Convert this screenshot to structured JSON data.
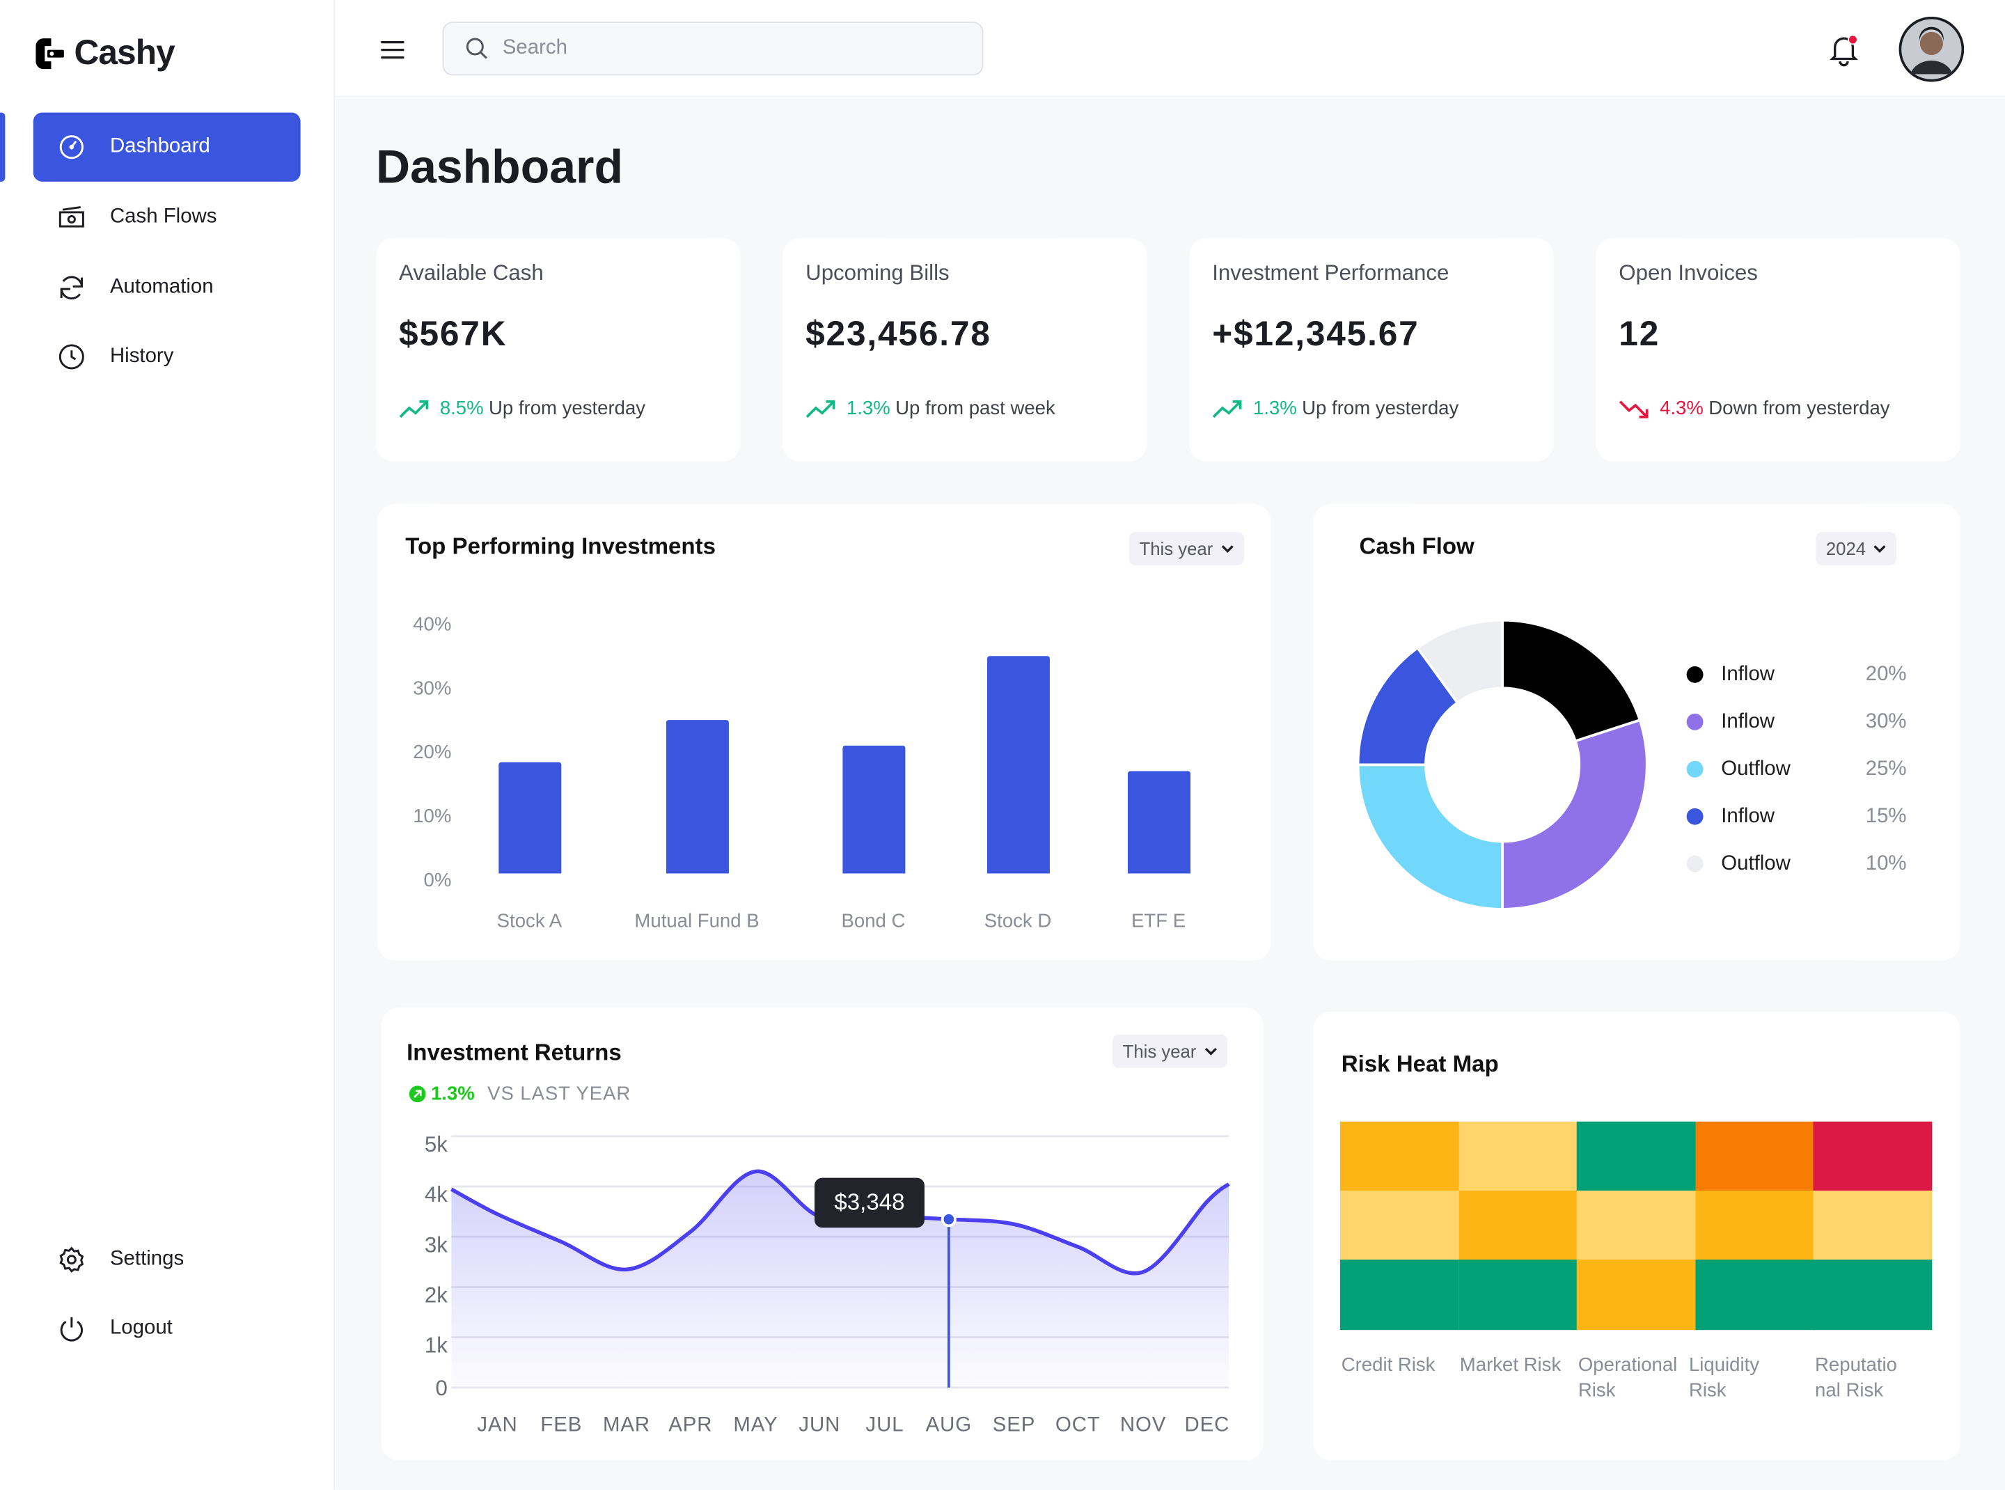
{
  "app": {
    "name": "Cashy"
  },
  "sidebar": {
    "items": [
      {
        "label": "Dashboard",
        "icon": "gauge-icon",
        "active": true
      },
      {
        "label": "Cash Flows",
        "icon": "cash-icon"
      },
      {
        "label": "Automation",
        "icon": "refresh-icon"
      },
      {
        "label": "History",
        "icon": "clock-icon"
      }
    ],
    "bottom_items": [
      {
        "label": "Settings",
        "icon": "gear-icon"
      },
      {
        "label": "Logout",
        "icon": "power-icon"
      }
    ]
  },
  "header": {
    "search_placeholder": "Search",
    "has_notification": true
  },
  "page": {
    "title": "Dashboard"
  },
  "stats": [
    {
      "title": "Available Cash",
      "value": "$567K",
      "delta": "8.5%",
      "delta_text": "Up from yesterday",
      "trend": "up"
    },
    {
      "title": "Upcoming Bills",
      "value": "$23,456.78",
      "delta": "1.3%",
      "delta_text": "Up from past week",
      "trend": "up"
    },
    {
      "title": "Investment Performance",
      "value": "+$12,345.67",
      "delta": "1.3%",
      "delta_text": "Up from yesterday",
      "trend": "up"
    },
    {
      "title": "Open Invoices",
      "value": "12",
      "delta": "4.3%",
      "delta_text": "Down from yesterday",
      "trend": "down"
    }
  ],
  "colors": {
    "accent": "#3a55de",
    "up": "#12b886",
    "down": "#e5173f"
  },
  "top_investments": {
    "title": "Top Performing Investments",
    "filter": "This year"
  },
  "cash_flow": {
    "title": "Cash Flow",
    "filter": "2024"
  },
  "returns": {
    "title": "Investment Returns",
    "delta": "1.3%",
    "delta_label": "VS LAST YEAR",
    "filter": "This year",
    "tooltip": "$3,348"
  },
  "risk": {
    "title": "Risk Heat Map"
  },
  "chart_data": [
    {
      "type": "bar",
      "categories": [
        "Stock A",
        "Mutual Fund B",
        "Bond C",
        "Stock D",
        "ETF E"
      ],
      "values": [
        17.5,
        24,
        20,
        34,
        16
      ],
      "ylim": [
        0,
        40
      ],
      "yticks": [
        "0%",
        "10%",
        "20%",
        "30%",
        "40%"
      ],
      "color": "#3a55de"
    },
    {
      "type": "pie",
      "variant": "donut",
      "labels": [
        "Inflow",
        "Inflow",
        "Outflow",
        "Inflow",
        "Outflow"
      ],
      "values": [
        20,
        30,
        25,
        15,
        10
      ],
      "value_labels": [
        "20%",
        "30%",
        "25%",
        "15%",
        "10%"
      ],
      "colors": [
        "#000000",
        "#8f72e8",
        "#72d8fb",
        "#3a55de",
        "#edeef2"
      ],
      "legend": "right"
    },
    {
      "type": "area",
      "categories": [
        "JAN",
        "FEB",
        "MAR",
        "APR",
        "MAY",
        "JUN",
        "JUL",
        "AUG",
        "SEP",
        "OCT",
        "NOV",
        "DEC"
      ],
      "values": [
        3450,
        2900,
        2350,
        3100,
        4300,
        3400,
        3400,
        3348,
        3250,
        2800,
        2300,
        3700
      ],
      "ylim": [
        0,
        5000
      ],
      "yticks": [
        "0",
        "1k",
        "2k",
        "3k",
        "4k",
        "5k"
      ],
      "highlight": "AUG",
      "grid": true,
      "color": "#4b3ff0"
    },
    {
      "type": "heatmap",
      "columns": [
        "Credit Risk",
        "Market Risk",
        "Operational Risk",
        "Liquidity Risk",
        "Reputational Risk"
      ],
      "column_labels": [
        [
          "Credit Risk"
        ],
        [
          "Market Risk"
        ],
        [
          "Operational",
          "Risk"
        ],
        [
          "Liquidity",
          "Risk"
        ],
        [
          "Reputatio",
          "nal Risk"
        ]
      ],
      "rows": [
        [
          "#fdb515",
          "#fed46b",
          "#02a077",
          "#f77c04",
          "#dc1845"
        ],
        [
          "#fed46b",
          "#fdb515",
          "#fed46b",
          "#fdb515",
          "#fed46b"
        ],
        [
          "#02a077",
          "#02a077",
          "#fdb515",
          "#02a077",
          "#02a077"
        ]
      ]
    }
  ]
}
